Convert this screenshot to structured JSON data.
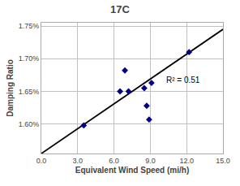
{
  "chart_data": {
    "type": "scatter",
    "title": "17C",
    "x_label": "Equivalent Wind Speed (mi/h)",
    "y_label": "Damping Ratio",
    "xlim": [
      0.0,
      15.0
    ],
    "ylim": [
      0.01555,
      0.01755
    ],
    "xticks": [
      {
        "value": 0,
        "label": "0.0"
      },
      {
        "value": 3,
        "label": "3.0"
      },
      {
        "value": 6,
        "label": "6.0"
      },
      {
        "value": 9,
        "label": "9.0"
      },
      {
        "value": 12,
        "label": "12.0"
      },
      {
        "value": 15,
        "label": "15.0"
      }
    ],
    "yticks": [
      {
        "value": 0.016,
        "label": "1.60%"
      },
      {
        "value": 0.0165,
        "label": "1.65%"
      },
      {
        "value": 0.017,
        "label": "1.70%"
      },
      {
        "value": 0.0175,
        "label": "1.75%"
      }
    ],
    "grid": true,
    "series": [
      {
        "type": "scatter",
        "color": "#00008B",
        "marker": "diamond",
        "x": [
          3.5,
          6.5,
          6.9,
          7.2,
          8.5,
          8.7,
          8.9,
          9.1,
          12.2
        ],
        "values": [
          0.01598,
          0.0165,
          0.01682,
          0.0165,
          0.01655,
          0.01628,
          0.01607,
          0.01663,
          0.0171
        ]
      },
      {
        "type": "line",
        "color": "#000000",
        "line_style": "solid",
        "x": [
          0.0,
          15.0
        ],
        "values": [
          0.01555,
          0.01745
        ]
      }
    ],
    "annotations": [
      {
        "text": "R² = 0.51",
        "x": 10.2,
        "y": 0.01667
      }
    ]
  }
}
